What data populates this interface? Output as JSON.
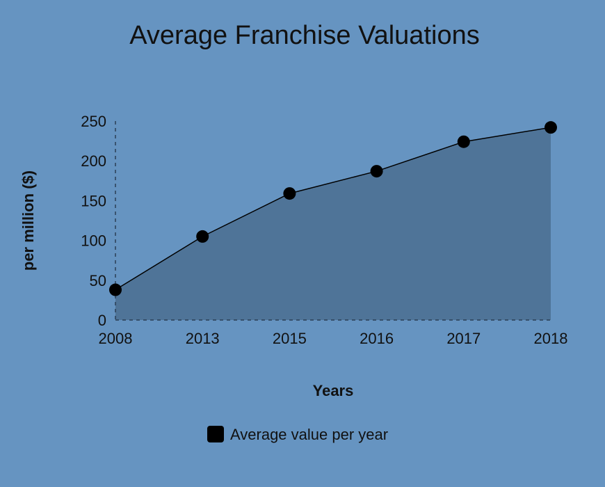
{
  "chart_data": {
    "type": "area",
    "title": "Average Franchise Valuations",
    "xlabel": "Years",
    "ylabel": "per million ($)",
    "categories": [
      "2008",
      "2013",
      "2015",
      "2016",
      "2017",
      "2018"
    ],
    "series": [
      {
        "name": "Average value per year",
        "values": [
          38,
          105,
          159,
          187,
          224,
          242
        ]
      }
    ],
    "ylim": [
      0,
      250
    ],
    "yticks": [
      0,
      50,
      100,
      150,
      200,
      250
    ],
    "grid": false,
    "legend": "bottom",
    "colors": {
      "background": "#6694c1",
      "area_fill": "#4f7498",
      "line": "#000000",
      "marker": "#000000",
      "axis": "#2b3f55"
    }
  }
}
